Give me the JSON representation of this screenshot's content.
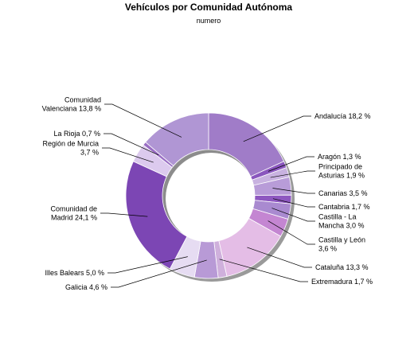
{
  "chart_data": {
    "type": "pie",
    "variant": "donut",
    "title": "Vehículos por Comunidad Autónoma",
    "subtitle": "numero",
    "unit": "%",
    "slices": [
      {
        "name": "Andalucía",
        "value": 18.2,
        "label": "Andalucía 18,2 %",
        "color": "#a07cc8"
      },
      {
        "name": "Aragón",
        "value": 1.3,
        "label": "Aragón 1,3 %",
        "color": "#8a56be"
      },
      {
        "name": "Principado de Asturias",
        "value": 1.9,
        "label": "Principado de\nAsturias 1,9 %",
        "color": "#c8b2e0"
      },
      {
        "name": "Canarias",
        "value": 3.5,
        "label": "Canarias 3,5 %",
        "color": "#b89cd8"
      },
      {
        "name": "Cantabria",
        "value": 1.7,
        "label": "Cantabria 1,7 %",
        "color": "#8e58c0"
      },
      {
        "name": "Castilla - La Mancha",
        "value": 3.0,
        "label": "Castilla - La\nMancha 3,0 %",
        "color": "#a98ad0"
      },
      {
        "name": "Castilla y León",
        "value": 3.6,
        "label": "Castilla y León\n3,6 %",
        "color": "#c486d2"
      },
      {
        "name": "Cataluña",
        "value": 13.3,
        "label": "Cataluña 13,3 %",
        "color": "#e4bde6"
      },
      {
        "name": "Extremadura",
        "value": 1.7,
        "label": "Extremadura 1,7 %",
        "color": "#cfb0dc"
      },
      {
        "name": "Galicia",
        "value": 4.6,
        "label": "Galicia 4,6 %",
        "color": "#b89ad6"
      },
      {
        "name": "Illes Balears",
        "value": 5.0,
        "label": "Illes Balears 5,0 %",
        "color": "#e6dcf2"
      },
      {
        "name": "Comunidad de Madrid",
        "value": 24.1,
        "label": "Comunidad de\nMadrid 24,1 %",
        "color": "#7c46b4"
      },
      {
        "name": "Región de Murcia",
        "value": 3.7,
        "label": "Región de Murcia\n3,7 %",
        "color": "#dccaee"
      },
      {
        "name": "La Rioja",
        "value": 0.7,
        "label": "La Rioja 0,7 %",
        "color": "#9a6ec4"
      },
      {
        "name": "Comunidad Valenciana",
        "value": 13.8,
        "label": "Comunidad\nValenciana 13,8 %",
        "color": "#b096d4"
      }
    ]
  }
}
